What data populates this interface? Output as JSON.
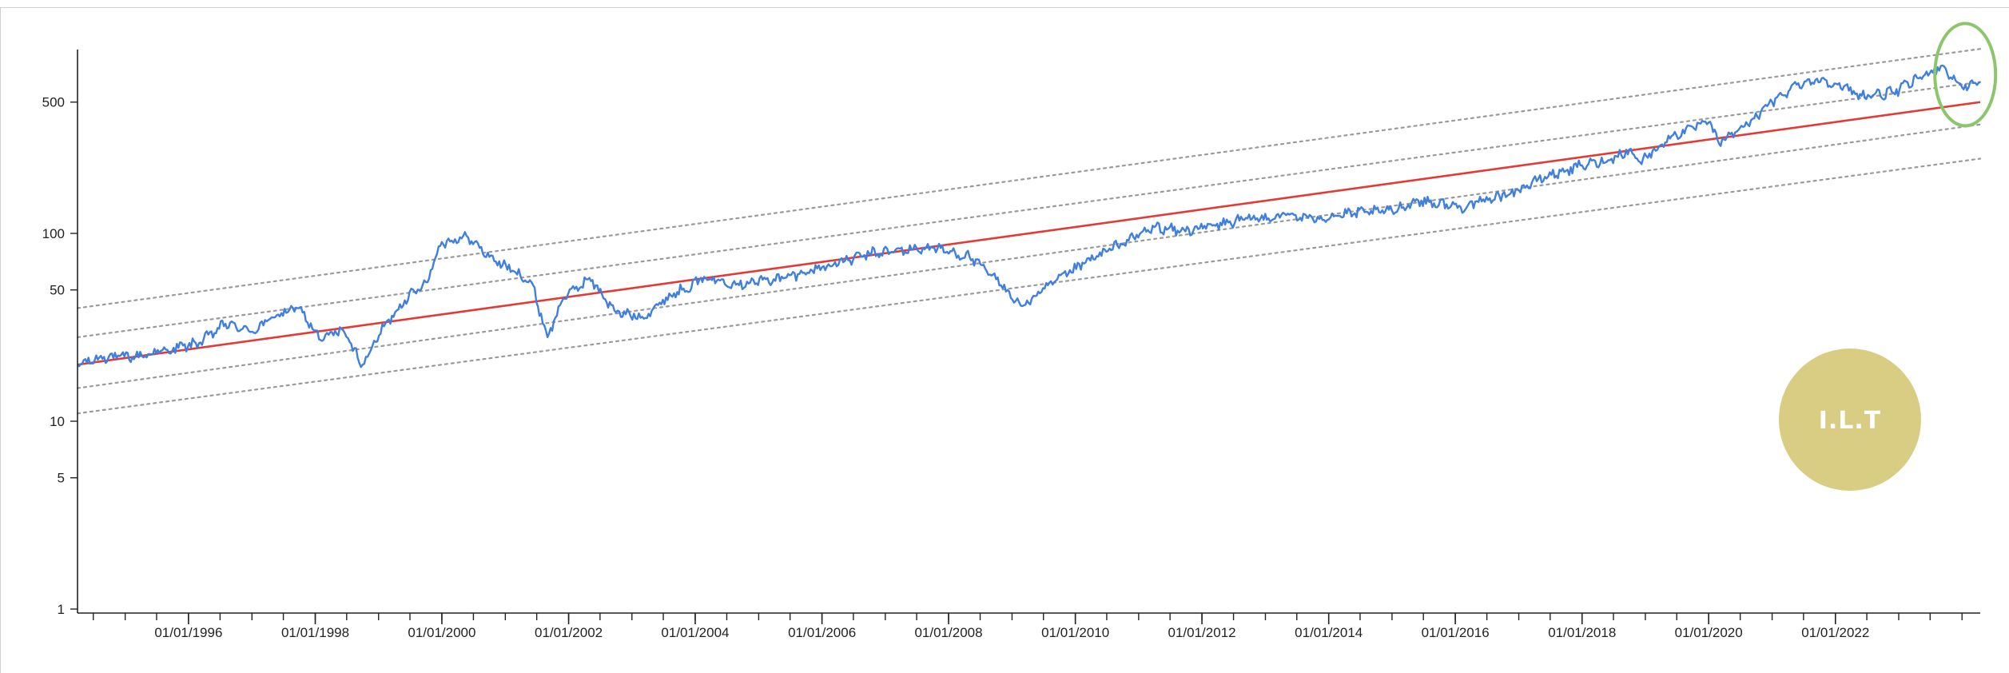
{
  "logo": {
    "text": "I.L.T",
    "color": "#d8cd82"
  },
  "chart_data": {
    "type": "line",
    "title": "",
    "xlabel": "",
    "ylabel": "",
    "y_scale": "log",
    "ylim": [
      1,
      1000
    ],
    "xlim": [
      "1994-04-01",
      "2024-04-15"
    ],
    "grid": false,
    "y_ticks": [
      1,
      5,
      10,
      50,
      100,
      500
    ],
    "y_tick_labels": [
      "1",
      "5",
      "10",
      "50",
      "100",
      "500"
    ],
    "x_tick_labels": [
      "01/01/1996",
      "01/01/1998",
      "01/01/2000",
      "01/01/2002",
      "01/01/2004",
      "01/01/2006",
      "01/01/2008",
      "01/01/2010",
      "01/01/2012",
      "01/01/2014",
      "01/01/2016",
      "01/01/2018",
      "01/01/2020",
      "01/01/2022"
    ],
    "x_tick_dates": [
      "1996-01-01",
      "1998-01-01",
      "2000-01-01",
      "2002-01-01",
      "2004-01-01",
      "2006-01-01",
      "2008-01-01",
      "2010-01-01",
      "2012-01-01",
      "2014-01-01",
      "2016-01-01",
      "2018-01-01",
      "2020-01-01",
      "2022-01-01"
    ],
    "series": [
      {
        "role": "price",
        "color": "#3f7fe0",
        "style": "solid",
        "points": [
          [
            "1994-04-01",
            20
          ],
          [
            "1994-09-01",
            22
          ],
          [
            "1995-03-01",
            22
          ],
          [
            "1995-09-01",
            24
          ],
          [
            "1996-03-01",
            26
          ],
          [
            "1996-08-01",
            33
          ],
          [
            "1997-01-01",
            30
          ],
          [
            "1997-06-01",
            37
          ],
          [
            "1997-10-01",
            40
          ],
          [
            "1998-02-01",
            27
          ],
          [
            "1998-06-01",
            31
          ],
          [
            "1998-10-01",
            20
          ],
          [
            "1999-02-01",
            32
          ],
          [
            "1999-06-01",
            44
          ],
          [
            "1999-10-01",
            55
          ],
          [
            "2000-01-01",
            90
          ],
          [
            "2000-06-01",
            95
          ],
          [
            "2000-10-01",
            75
          ],
          [
            "2001-03-01",
            62
          ],
          [
            "2001-06-01",
            55
          ],
          [
            "2001-09-01",
            28
          ],
          [
            "2001-12-01",
            45
          ],
          [
            "2002-05-01",
            58
          ],
          [
            "2002-10-01",
            38
          ],
          [
            "2003-03-01",
            36
          ],
          [
            "2003-09-01",
            48
          ],
          [
            "2004-03-01",
            58
          ],
          [
            "2004-09-01",
            54
          ],
          [
            "2005-06-01",
            58
          ],
          [
            "2006-01-01",
            66
          ],
          [
            "2006-06-01",
            72
          ],
          [
            "2006-10-01",
            78
          ],
          [
            "2007-06-01",
            82
          ],
          [
            "2007-10-01",
            84
          ],
          [
            "2008-05-01",
            75
          ],
          [
            "2008-10-01",
            57
          ],
          [
            "2009-03-01",
            41
          ],
          [
            "2009-09-01",
            55
          ],
          [
            "2010-03-01",
            70
          ],
          [
            "2010-09-01",
            86
          ],
          [
            "2011-04-01",
            108
          ],
          [
            "2011-09-01",
            103
          ],
          [
            "2012-03-01",
            110
          ],
          [
            "2012-09-01",
            118
          ],
          [
            "2013-05-01",
            125
          ],
          [
            "2013-10-01",
            120
          ],
          [
            "2014-06-01",
            128
          ],
          [
            "2015-01-01",
            132
          ],
          [
            "2015-06-01",
            150
          ],
          [
            "2016-02-01",
            138
          ],
          [
            "2016-06-01",
            148
          ],
          [
            "2017-01-01",
            170
          ],
          [
            "2017-06-01",
            200
          ],
          [
            "2018-01-01",
            230
          ],
          [
            "2018-06-01",
            245
          ],
          [
            "2018-10-01",
            280
          ],
          [
            "2018-12-01",
            240
          ],
          [
            "2019-06-01",
            330
          ],
          [
            "2020-01-01",
            390
          ],
          [
            "2020-03-01",
            300
          ],
          [
            "2020-09-01",
            400
          ],
          [
            "2021-01-01",
            500
          ],
          [
            "2021-06-01",
            630
          ],
          [
            "2021-11-01",
            660
          ],
          [
            "2022-06-01",
            540
          ],
          [
            "2022-12-01",
            560
          ],
          [
            "2023-06-01",
            700
          ],
          [
            "2023-09-01",
            780
          ],
          [
            "2024-01-01",
            600
          ],
          [
            "2024-04-15",
            640
          ]
        ]
      },
      {
        "role": "trend",
        "color": "#e53935",
        "style": "solid",
        "points": [
          [
            "1994-04-01",
            20
          ],
          [
            "2024-04-15",
            500
          ]
        ]
      },
      {
        "role": "upper-band-2",
        "color": "#9a9a9a",
        "style": "dotted",
        "points": [
          [
            "1994-04-01",
            40
          ],
          [
            "2024-04-15",
            960
          ]
        ]
      },
      {
        "role": "upper-band-1",
        "color": "#9a9a9a",
        "style": "dotted",
        "points": [
          [
            "1994-04-01",
            28
          ],
          [
            "2024-04-15",
            640
          ]
        ]
      },
      {
        "role": "lower-band-1",
        "color": "#9a9a9a",
        "style": "dotted",
        "points": [
          [
            "1994-04-01",
            15
          ],
          [
            "2024-04-15",
            380
          ]
        ]
      },
      {
        "role": "lower-band-2",
        "color": "#9a9a9a",
        "style": "dotted",
        "points": [
          [
            "1994-04-01",
            11
          ],
          [
            "2024-04-15",
            250
          ]
        ]
      }
    ],
    "annotations": [
      {
        "type": "ellipse-highlight",
        "color": "#8cc66a",
        "at": [
          "2024-01-01",
          700
        ]
      }
    ]
  }
}
